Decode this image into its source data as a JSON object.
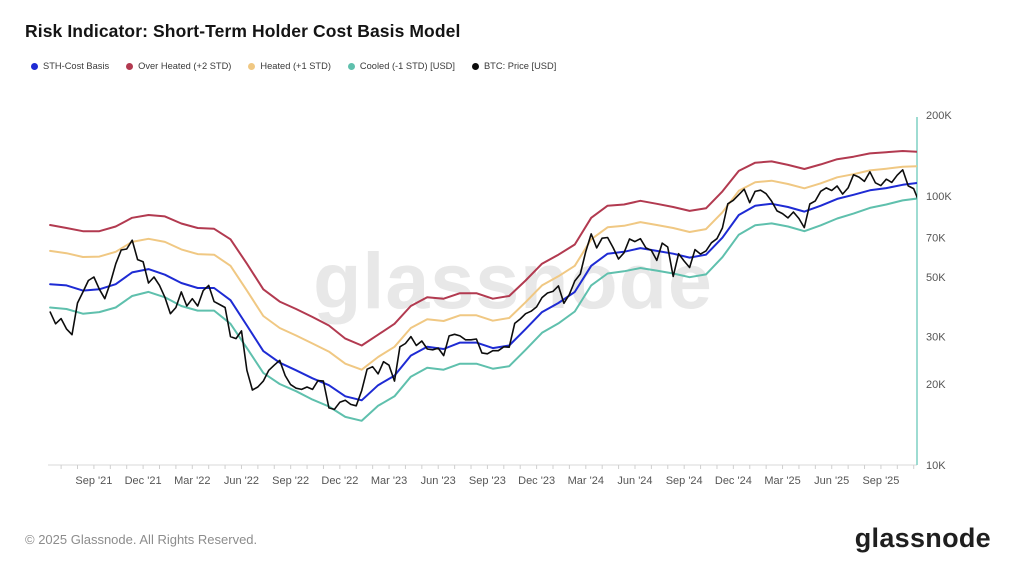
{
  "title": "Risk Indicator: Short-Term Holder Cost Basis Model",
  "watermark": "glassnode",
  "footer": {
    "copyright": "© 2025 Glassnode. All Rights Reserved.",
    "brand": "glassnode"
  },
  "colors": {
    "axis_line_right": "#85d3c6",
    "axis_line_bottom": "#d9d9d9",
    "tick_mark": "#cfcfcf",
    "tick_text": "#555555",
    "watermark": "#e8e8e8"
  },
  "legend": {
    "items": [
      {
        "label": "STH-Cost Basis",
        "color": "#1e2bd4"
      },
      {
        "label": "Over Heated (+2 STD)",
        "color": "#b23a50"
      },
      {
        "label": "Heated (+1 STD)",
        "color": "#f0c883"
      },
      {
        "label": "Cooled (-1 STD) [USD]",
        "color": "#5fc0ad"
      },
      {
        "label": "BTC: Price [USD]",
        "color": "#0d0d0d"
      }
    ]
  },
  "chart_data": {
    "type": "line",
    "title": "Risk Indicator: Short-Term Holder Cost Basis Model",
    "y_scale": "log",
    "values_unit": "thousand USD",
    "x_unit": "months, t=0 is Jul 2021, data spans ~Jun 2021 to Nov 2025",
    "ylim_k": [
      10,
      200
    ],
    "grid": false,
    "legend_position": "top-left",
    "y_ticks": [
      {
        "value_k": 200,
        "label": "200K"
      },
      {
        "value_k": 100,
        "label": "100K"
      },
      {
        "value_k": 70,
        "label": "70K"
      },
      {
        "value_k": 50,
        "label": "50K"
      },
      {
        "value_k": 30,
        "label": "30K"
      },
      {
        "value_k": 20,
        "label": "20K"
      },
      {
        "value_k": 10,
        "label": "10K"
      }
    ],
    "x_ticks": [
      {
        "t": 2,
        "label": "Sep '21"
      },
      {
        "t": 5,
        "label": "Dec '21"
      },
      {
        "t": 8,
        "label": "Mar '22"
      },
      {
        "t": 11,
        "label": "Jun '22"
      },
      {
        "t": 14,
        "label": "Sep '22"
      },
      {
        "t": 17,
        "label": "Dec '22"
      },
      {
        "t": 20,
        "label": "Mar '23"
      },
      {
        "t": 23,
        "label": "Jun '23"
      },
      {
        "t": 26,
        "label": "Sep '23"
      },
      {
        "t": 29,
        "label": "Dec '23"
      },
      {
        "t": 32,
        "label": "Mar '24"
      },
      {
        "t": 35,
        "label": "Jun '24"
      },
      {
        "t": 38,
        "label": "Sep '24"
      },
      {
        "t": 41,
        "label": "Dec '24"
      },
      {
        "t": 44,
        "label": "Mar '25"
      },
      {
        "t": 47,
        "label": "Jun '25"
      },
      {
        "t": 50,
        "label": "Sep '25"
      }
    ],
    "series": [
      {
        "name": "Over Heated (+2 STD)",
        "color": "#b23a50",
        "width": 2,
        "start": -0.67,
        "step": 1,
        "values": [
          78,
          76,
          74,
          74,
          77,
          83,
          85,
          84,
          79,
          76,
          75.5,
          69,
          56,
          45,
          40.5,
          38,
          35.5,
          33,
          29.5,
          27.8,
          30.5,
          33.5,
          39,
          42,
          41.5,
          43.5,
          43.5,
          41.5,
          42.5,
          48.5,
          56,
          60.5,
          66,
          83,
          92,
          93,
          96,
          93.5,
          91,
          88,
          90,
          104,
          124,
          133,
          134.5,
          130.5,
          126,
          131,
          137,
          140,
          144,
          145.5,
          147,
          146
        ]
      },
      {
        "name": "Heated (+1 STD)",
        "color": "#f0c883",
        "width": 2,
        "start": -0.67,
        "step": 1,
        "values": [
          62.5,
          61.3,
          59.3,
          59.5,
          62,
          67.5,
          69.3,
          67.5,
          63.3,
          60.8,
          60.5,
          55,
          44.5,
          35.8,
          32.3,
          30.3,
          28.3,
          26.4,
          23.8,
          22.6,
          25.2,
          27.5,
          32.3,
          34.8,
          34.3,
          36,
          36,
          34.4,
          35.2,
          40.3,
          46.5,
          50.3,
          55,
          69,
          76.5,
          77.5,
          80,
          78,
          76,
          73.5,
          75.3,
          87,
          104.5,
          112.5,
          114,
          110.8,
          106.8,
          111.5,
          117.3,
          120.5,
          124.5,
          126.3,
          128.5,
          129
        ]
      },
      {
        "name": "Cooled (-1 STD) [USD]",
        "color": "#5fc0ad",
        "width": 2,
        "start": -0.67,
        "step": 1,
        "values": [
          38.5,
          38,
          36.5,
          37,
          38.5,
          42.5,
          44,
          42,
          39,
          37.5,
          37.5,
          33.5,
          27.2,
          22,
          20,
          18.8,
          17.5,
          16.5,
          15.1,
          14.6,
          16.6,
          18,
          21.3,
          23,
          22.6,
          23.8,
          23.8,
          22.8,
          23.3,
          26.8,
          31,
          33.6,
          37.2,
          46.5,
          51.5,
          52.5,
          54,
          52.8,
          51.5,
          49.9,
          51.1,
          59.2,
          71.8,
          77.8,
          79.1,
          77,
          74,
          77.8,
          82.5,
          86,
          90.3,
          93,
          96.3,
          98
        ]
      },
      {
        "name": "STH-Cost Basis",
        "color": "#1e2bd4",
        "width": 2,
        "start": -0.67,
        "step": 1,
        "values": [
          47,
          46.5,
          44.5,
          45,
          47,
          52,
          53.5,
          51,
          47.5,
          45.5,
          45.5,
          41,
          33,
          26.5,
          24,
          22.5,
          21,
          19.8,
          18,
          17.4,
          19.8,
          21.5,
          25.5,
          27.5,
          27,
          28.5,
          28.5,
          27.2,
          27.8,
          32,
          37,
          40,
          44,
          55,
          61,
          62,
          64,
          62.5,
          61,
          59,
          60.5,
          70,
          85,
          92,
          93.5,
          91,
          87.5,
          92,
          97.5,
          101,
          105,
          107,
          110,
          112
        ]
      },
      {
        "name": "BTC: Price [USD]",
        "color": "#0d0d0d",
        "width": 1.6,
        "start": -0.667,
        "step": 0.3333,
        "values": [
          37,
          33.5,
          35,
          32,
          30.5,
          40,
          44,
          48.5,
          50,
          45,
          41.5,
          47.5,
          56,
          63,
          63.5,
          68.5,
          58,
          57,
          47.5,
          50,
          46.5,
          42,
          36.5,
          38.5,
          44,
          39,
          41.5,
          39,
          44.5,
          46.5,
          40.5,
          39.5,
          38.5,
          30,
          29.5,
          31.5,
          22.5,
          19,
          19.5,
          20.5,
          22.5,
          23.5,
          24.5,
          21.5,
          19.9,
          19.3,
          19.1,
          19.5,
          19.1,
          20.6,
          20.5,
          16.3,
          16.1,
          17.1,
          17.4,
          16.8,
          16.6,
          18.9,
          22.7,
          23.2,
          21.8,
          24.2,
          23.5,
          20.5,
          27.5,
          28.3,
          30,
          27.8,
          28.9,
          27,
          26.8,
          27.2,
          25.5,
          30.2,
          30.6,
          30.2,
          29.2,
          29.2,
          29.4,
          26.1,
          25.9,
          26.6,
          26.6,
          27.5,
          27.4,
          33.6,
          34.9,
          36.5,
          37.3,
          38.7,
          41.9,
          43.6,
          44.2,
          46.3,
          39.9,
          43,
          48.3,
          51.3,
          62,
          72.3,
          64.1,
          69.7,
          70.1,
          64.3,
          58.3,
          61.5,
          69.2,
          67.7,
          69.4,
          64.1,
          62.8,
          57.6,
          66.8,
          64.6,
          50.2,
          61,
          57.3,
          54.2,
          63.2,
          60.8,
          62.5,
          67,
          69.4,
          76,
          93.5,
          96.4,
          101.1,
          106,
          94.4,
          104,
          105.1,
          102,
          95.8,
          88,
          86,
          82.9,
          87.2,
          82.5,
          76.3,
          93.4,
          95.9,
          104.1,
          107.2,
          104.8,
          108.9,
          101.6,
          107.2,
          119.9,
          117.5,
          113.3,
          123,
          111.9,
          109.3,
          115.4,
          112.3,
          119.5,
          125.1,
          109,
          106.5,
          95,
          84
        ]
      }
    ]
  }
}
